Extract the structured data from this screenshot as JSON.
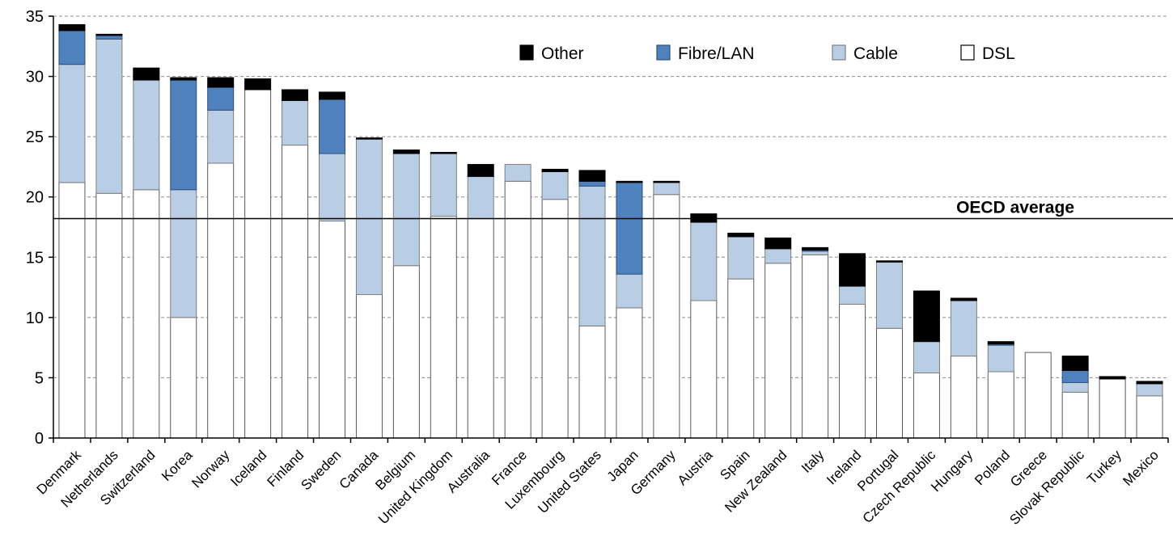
{
  "chart_data": {
    "type": "bar",
    "stacked": true,
    "title": "",
    "xlabel": "",
    "ylabel": "",
    "ylim": [
      0,
      35
    ],
    "yticks": [
      0,
      5,
      10,
      15,
      20,
      25,
      30,
      35
    ],
    "grid": "horizontal-dashed",
    "legend_position": "top-right",
    "reference_line": {
      "label": "OECD average",
      "value": 18.2
    },
    "colors": {
      "DSL": "#ffffff",
      "Cable": "#b9cde5",
      "Fibre/LAN": "#4f81bd",
      "Other": "#000000"
    },
    "legend_order": [
      "Other",
      "Fibre/LAN",
      "Cable",
      "DSL"
    ],
    "categories": [
      "Denmark",
      "Netherlands",
      "Switzerland",
      "Korea",
      "Norway",
      "Iceland",
      "Finland",
      "Sweden",
      "Canada",
      "Belgium",
      "United Kingdom",
      "Australia",
      "France",
      "Luxembourg",
      "United States",
      "Japan",
      "Germany",
      "Austria",
      "Spain",
      "New Zealand",
      "Italy",
      "Ireland",
      "Portugal",
      "Czech Republic",
      "Hungary",
      "Poland",
      "Greece",
      "Slovak Republic",
      "Turkey",
      "Mexico"
    ],
    "series": [
      {
        "name": "DSL",
        "values": [
          21.2,
          20.3,
          20.6,
          10.0,
          22.8,
          28.9,
          24.3,
          18.0,
          11.9,
          14.3,
          18.4,
          18.2,
          21.3,
          19.8,
          9.3,
          10.8,
          20.2,
          11.4,
          13.2,
          14.5,
          15.2,
          11.1,
          9.1,
          5.4,
          6.8,
          5.5,
          7.1,
          3.8,
          4.9,
          3.5
        ]
      },
      {
        "name": "Cable",
        "values": [
          9.8,
          12.8,
          9.1,
          10.6,
          4.4,
          0.0,
          3.7,
          5.6,
          12.9,
          9.3,
          5.2,
          3.5,
          1.4,
          2.3,
          11.6,
          2.8,
          1.0,
          6.5,
          3.5,
          1.2,
          0.3,
          1.5,
          5.5,
          2.6,
          4.6,
          2.2,
          0.0,
          0.8,
          0.0,
          1.0
        ]
      },
      {
        "name": "Fibre/LAN",
        "values": [
          2.8,
          0.3,
          0.0,
          9.1,
          1.9,
          0.0,
          0.0,
          4.5,
          0.0,
          0.0,
          0.0,
          0.0,
          0.0,
          0.0,
          0.4,
          7.6,
          0.0,
          0.0,
          0.0,
          0.0,
          0.1,
          0.0,
          0.0,
          0.0,
          0.0,
          0.1,
          0.0,
          1.0,
          0.0,
          0.0
        ]
      },
      {
        "name": "Other",
        "values": [
          0.5,
          0.1,
          1.0,
          0.2,
          0.8,
          0.9,
          0.9,
          0.6,
          0.1,
          0.3,
          0.1,
          1.0,
          0.0,
          0.2,
          0.9,
          0.1,
          0.1,
          0.7,
          0.3,
          0.9,
          0.2,
          2.7,
          0.1,
          4.2,
          0.2,
          0.2,
          0.0,
          1.2,
          0.2,
          0.2
        ]
      }
    ]
  }
}
